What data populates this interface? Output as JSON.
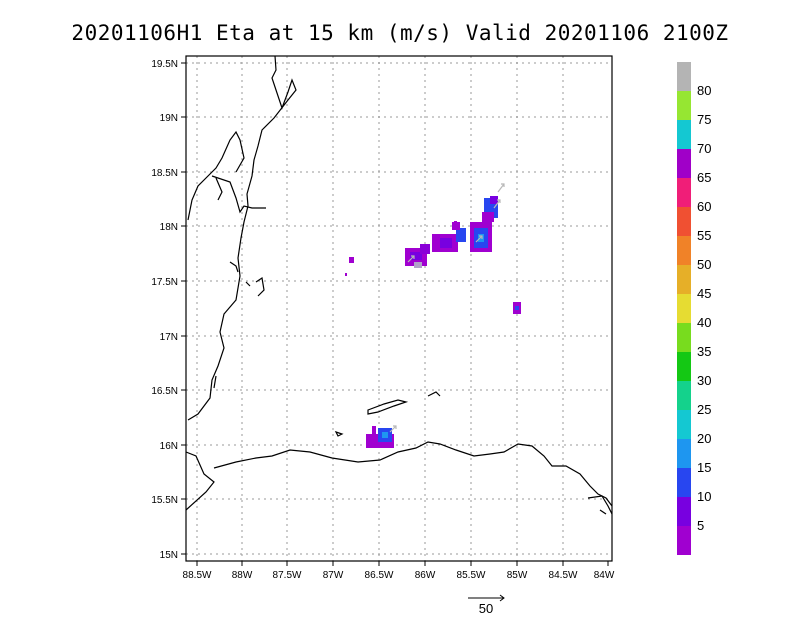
{
  "title": "20201106H1 Eta at 15 km (m/s) Valid 20201106 2100Z",
  "map": {
    "lat_labels": [
      "19.5N",
      "19N",
      "18.5N",
      "18N",
      "17.5N",
      "17N",
      "16.5N",
      "16N",
      "15.5N",
      "15N"
    ],
    "lon_labels": [
      "88.5W",
      "88W",
      "87.5W",
      "87W",
      "86.5W",
      "86W",
      "85.5W",
      "85W",
      "84.5W",
      "84W"
    ],
    "lat_range": [
      14.95,
      19.5
    ],
    "lon_range": [
      -88.6,
      -84.0
    ],
    "grid": "dotted"
  },
  "colorbar": {
    "labels": [
      "5",
      "10",
      "15",
      "20",
      "25",
      "30",
      "35",
      "40",
      "45",
      "50",
      "55",
      "60",
      "65",
      "70",
      "75",
      "80"
    ],
    "colors": [
      "#a000d0",
      "#7800e0",
      "#2846f0",
      "#1e96f0",
      "#14c8d2",
      "#14d28c",
      "#14c814",
      "#78dc1e",
      "#e6dc32",
      "#e6af28",
      "#f08228",
      "#f05032",
      "#f01e78",
      "#a000c8",
      "#14c8d2",
      "#96e632",
      "#b4b4b4"
    ]
  },
  "vector_key": {
    "label": "50"
  }
}
